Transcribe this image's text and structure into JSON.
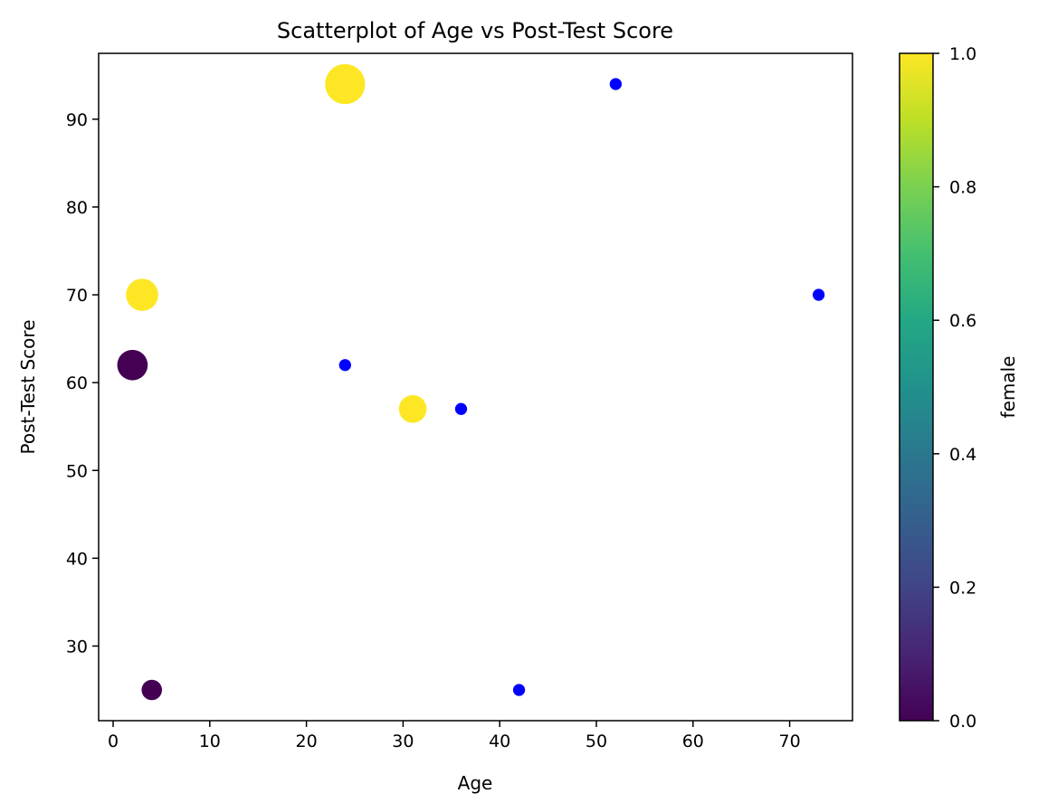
{
  "chart_data": {
    "type": "scatter",
    "title": "Scatterplot of Age vs Post-Test Score",
    "xlabel": "Age",
    "ylabel": "Post-Test Score",
    "xlim": [
      -1.5,
      76.5
    ],
    "ylim": [
      21.5,
      97.5
    ],
    "xticks": [
      0,
      10,
      20,
      30,
      40,
      50,
      60,
      70
    ],
    "yticks": [
      30,
      40,
      50,
      60,
      70,
      80,
      90
    ],
    "grid": false,
    "colorbar": {
      "label": "female",
      "range": [
        0,
        1
      ],
      "ticks": [
        "0.0",
        "0.2",
        "0.4",
        "0.6",
        "0.8",
        "1.0"
      ],
      "colormap": "viridis"
    },
    "series": [
      {
        "values": [
          {
            "x": 2,
            "y": 62,
            "female": 0,
            "size": 580
          },
          {
            "x": 3,
            "y": 70,
            "female": 1,
            "size": 650
          },
          {
            "x": 4,
            "y": 25,
            "female": 0,
            "size": 260
          },
          {
            "x": 24,
            "y": 94,
            "female": 1,
            "size": 1000
          },
          {
            "x": 31,
            "y": 57,
            "female": 1,
            "size": 480
          }
        ]
      },
      {
        "color": "#0000ff",
        "values": [
          {
            "x": 24,
            "y": 62,
            "size": 90
          },
          {
            "x": 36,
            "y": 57,
            "size": 90
          },
          {
            "x": 42,
            "y": 25,
            "size": 90
          },
          {
            "x": 52,
            "y": 94,
            "size": 90
          },
          {
            "x": 73,
            "y": 70,
            "size": 90
          }
        ]
      }
    ]
  }
}
